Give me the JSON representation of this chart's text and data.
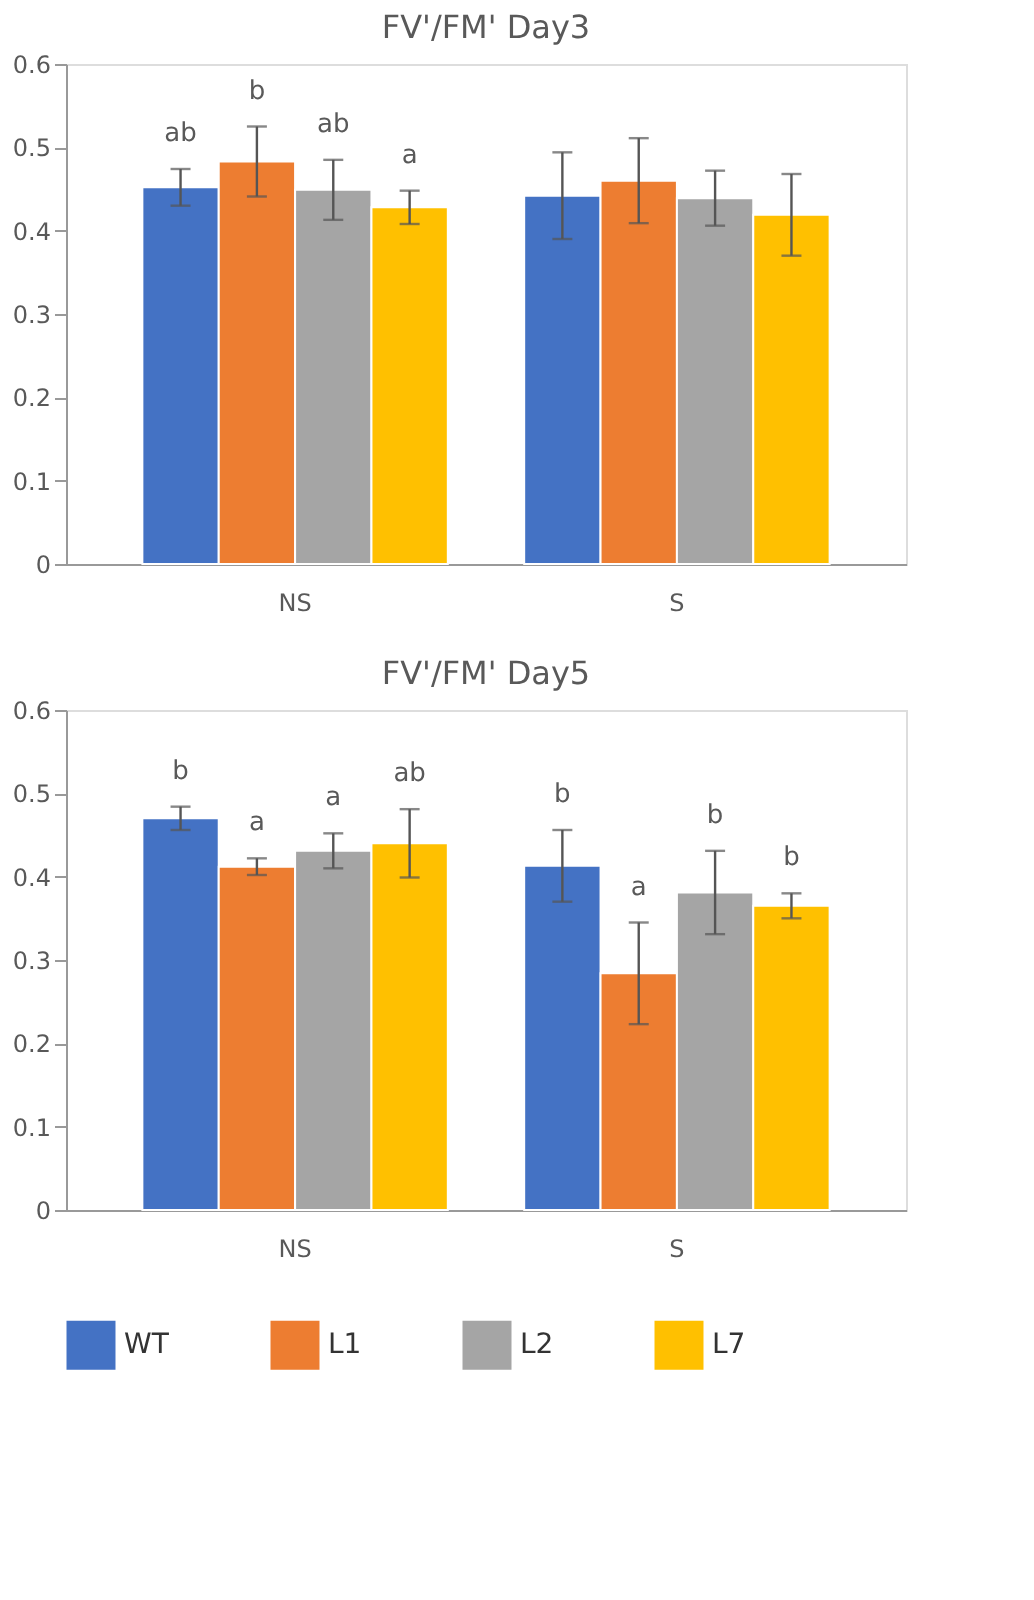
{
  "chart_data": [
    {
      "type": "bar",
      "title": "FV'/FM' Day3",
      "categories": [
        "NS",
        "S"
      ],
      "ylim": [
        0,
        0.6
      ],
      "yticks": [
        0,
        0.1,
        0.2,
        0.3,
        0.4,
        0.5,
        0.6
      ],
      "grid": false,
      "legend": false,
      "series": [
        {
          "color": "#4472c4",
          "values": [
            0.452,
            0.442
          ],
          "errors": [
            0.022,
            0.052
          ],
          "value_labels": [
            "ab",
            null
          ]
        },
        {
          "color": "#ed7d31",
          "values": [
            0.483,
            0.46
          ],
          "errors": [
            0.042,
            0.051
          ],
          "value_labels": [
            "b",
            null
          ]
        },
        {
          "color": "#a5a5a5",
          "values": [
            0.449,
            0.439
          ],
          "errors": [
            0.036,
            0.033
          ],
          "value_labels": [
            "ab",
            null
          ]
        },
        {
          "color": "#ffc000",
          "values": [
            0.428,
            0.419
          ],
          "errors": [
            0.02,
            0.049
          ],
          "value_labels": [
            "a",
            null
          ]
        }
      ]
    },
    {
      "type": "bar",
      "title": "FV'/FM' Day5",
      "categories": [
        "NS",
        "S"
      ],
      "ylim": [
        0,
        0.6
      ],
      "yticks": [
        0,
        0.1,
        0.2,
        0.3,
        0.4,
        0.5,
        0.6
      ],
      "grid": false,
      "legend": "bottom",
      "series": [
        {
          "name": "WT",
          "color": "#4472c4",
          "values": [
            0.47,
            0.413
          ],
          "errors": [
            0.014,
            0.043
          ],
          "value_labels": [
            "b",
            "b"
          ]
        },
        {
          "name": "L1",
          "color": "#ed7d31",
          "values": [
            0.412,
            0.284
          ],
          "errors": [
            0.01,
            0.061
          ],
          "value_labels": [
            "a",
            "a"
          ]
        },
        {
          "name": "L2",
          "color": "#a5a5a5",
          "values": [
            0.431,
            0.381
          ],
          "errors": [
            0.021,
            0.05
          ],
          "value_labels": [
            "a",
            "b"
          ]
        },
        {
          "name": "L7",
          "color": "#ffc000",
          "values": [
            0.44,
            0.365
          ],
          "errors": [
            0.041,
            0.015
          ],
          "value_labels": [
            "ab",
            "b"
          ]
        }
      ]
    }
  ]
}
